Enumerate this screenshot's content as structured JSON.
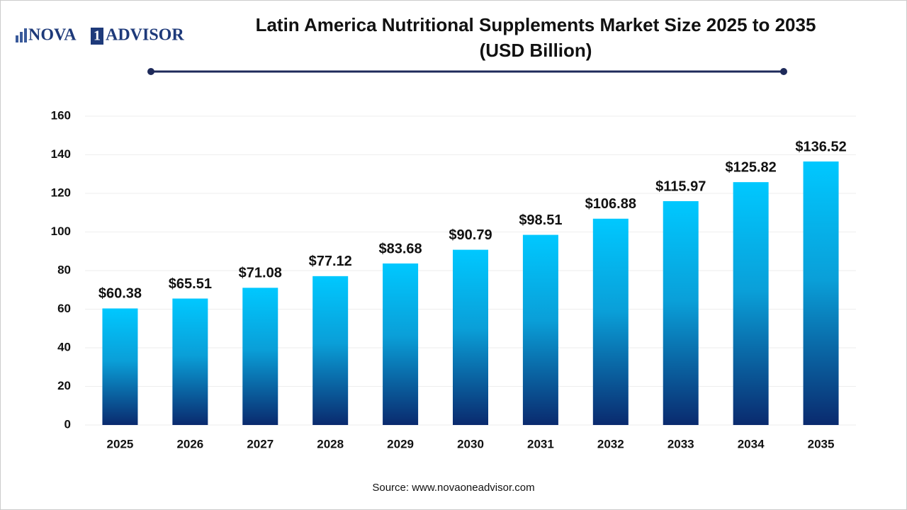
{
  "brand": {
    "left": "NOVA",
    "mark": "1",
    "right": "ADVISOR"
  },
  "chart_data": {
    "type": "bar",
    "title": "Latin America Nutritional Supplements Market Size 2025 to 2035",
    "subtitle": "(USD Billion)",
    "categories": [
      "2025",
      "2026",
      "2027",
      "2028",
      "2029",
      "2030",
      "2031",
      "2032",
      "2033",
      "2034",
      "2035"
    ],
    "values": [
      60.38,
      65.51,
      71.08,
      77.12,
      83.68,
      90.79,
      98.51,
      106.88,
      115.97,
      125.82,
      136.52
    ],
    "value_labels": [
      "$60.38",
      "$65.51",
      "$71.08",
      "$77.12",
      "$83.68",
      "$90.79",
      "$98.51",
      "$106.88",
      "$115.97",
      "$125.82",
      "$136.52"
    ],
    "color": [
      "#00c8ff",
      "#0a2a6e"
    ],
    "ylim": [
      0,
      160
    ],
    "yticks": [
      0,
      20,
      40,
      60,
      80,
      100,
      120,
      140,
      160
    ],
    "grid": true,
    "source": "Source: www.novaoneadvisor.com"
  }
}
